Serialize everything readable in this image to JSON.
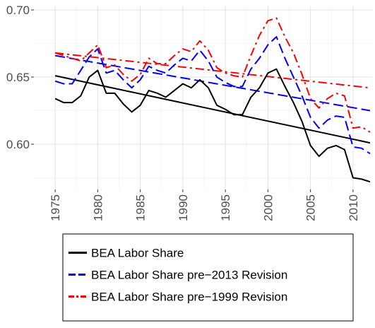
{
  "chart_data": {
    "type": "line",
    "x": [
      1975,
      1976,
      1977,
      1978,
      1979,
      1980,
      1981,
      1982,
      1983,
      1984,
      1985,
      1986,
      1987,
      1988,
      1989,
      1990,
      1991,
      1992,
      1993,
      1994,
      1995,
      1996,
      1997,
      1998,
      1999,
      2000,
      2001,
      2002,
      2003,
      2004,
      2005,
      2006,
      2007,
      2008,
      2009,
      2010,
      2011,
      2012
    ],
    "series": [
      {
        "name": "BEA Labor Share",
        "color": "#000000",
        "dash": "solid",
        "values": [
          0.634,
          0.631,
          0.631,
          0.636,
          0.65,
          0.655,
          0.638,
          0.638,
          0.63,
          0.624,
          0.629,
          0.64,
          0.638,
          0.635,
          0.64,
          0.645,
          0.642,
          0.648,
          0.642,
          0.629,
          0.626,
          0.622,
          0.622,
          0.635,
          0.642,
          0.653,
          0.656,
          0.643,
          0.631,
          0.617,
          0.599,
          0.591,
          0.597,
          0.599,
          0.596,
          0.575,
          0.574,
          0.572
        ]
      },
      {
        "name": "BEA Labor Share pre−2013 Revision",
        "color": "#0000ff",
        "dash": "longdash",
        "values": [
          0.647,
          0.645,
          0.645,
          0.655,
          0.665,
          0.671,
          0.653,
          0.655,
          0.648,
          0.642,
          0.648,
          0.658,
          0.655,
          0.653,
          0.659,
          0.664,
          0.662,
          0.67,
          0.662,
          0.65,
          0.646,
          0.643,
          0.643,
          0.656,
          0.664,
          0.674,
          0.68,
          0.664,
          0.65,
          0.636,
          0.62,
          0.612,
          0.618,
          0.621,
          0.62,
          0.598,
          0.597,
          0.593
        ]
      },
      {
        "name": "BEA Labor Share pre−1999 Revision",
        "color": "#ff0000",
        "dash": "dotdash",
        "values": [
          0.668,
          0.666,
          0.664,
          0.662,
          0.668,
          0.674,
          0.657,
          0.659,
          0.652,
          0.647,
          0.652,
          0.664,
          0.66,
          0.66,
          0.666,
          0.671,
          0.669,
          0.677,
          0.67,
          0.657,
          0.653,
          0.651,
          0.65,
          0.666,
          0.681,
          0.692,
          0.694,
          0.68,
          0.668,
          0.652,
          0.634,
          0.627,
          0.634,
          0.638,
          0.636,
          0.612,
          0.613,
          0.609
        ]
      }
    ],
    "trend_lines": [
      {
        "color": "#000000",
        "dash": "solid",
        "x": [
          1975,
          2012
        ],
        "values": [
          0.651,
          0.601
        ]
      },
      {
        "color": "#0000ff",
        "dash": "longdash",
        "x": [
          1975,
          2012
        ],
        "values": [
          0.666,
          0.625
        ]
      },
      {
        "color": "#ff0000",
        "dash": "dotdash",
        "x": [
          1975,
          2012
        ],
        "values": [
          0.668,
          0.642
        ]
      }
    ],
    "xlim": [
      1972.5,
      2012.25
    ],
    "xticks": [
      1975,
      1980,
      1985,
      1990,
      1995,
      2000,
      2005,
      2010
    ],
    "ylim": [
      0.5663,
      0.7032
    ],
    "yticks": [
      {
        "value": 0.6,
        "label": "0.60"
      },
      {
        "value": 0.65,
        "label": "0.65"
      },
      {
        "value": 0.7,
        "label": "0.70"
      }
    ],
    "grid": true,
    "legend": "bottom"
  }
}
